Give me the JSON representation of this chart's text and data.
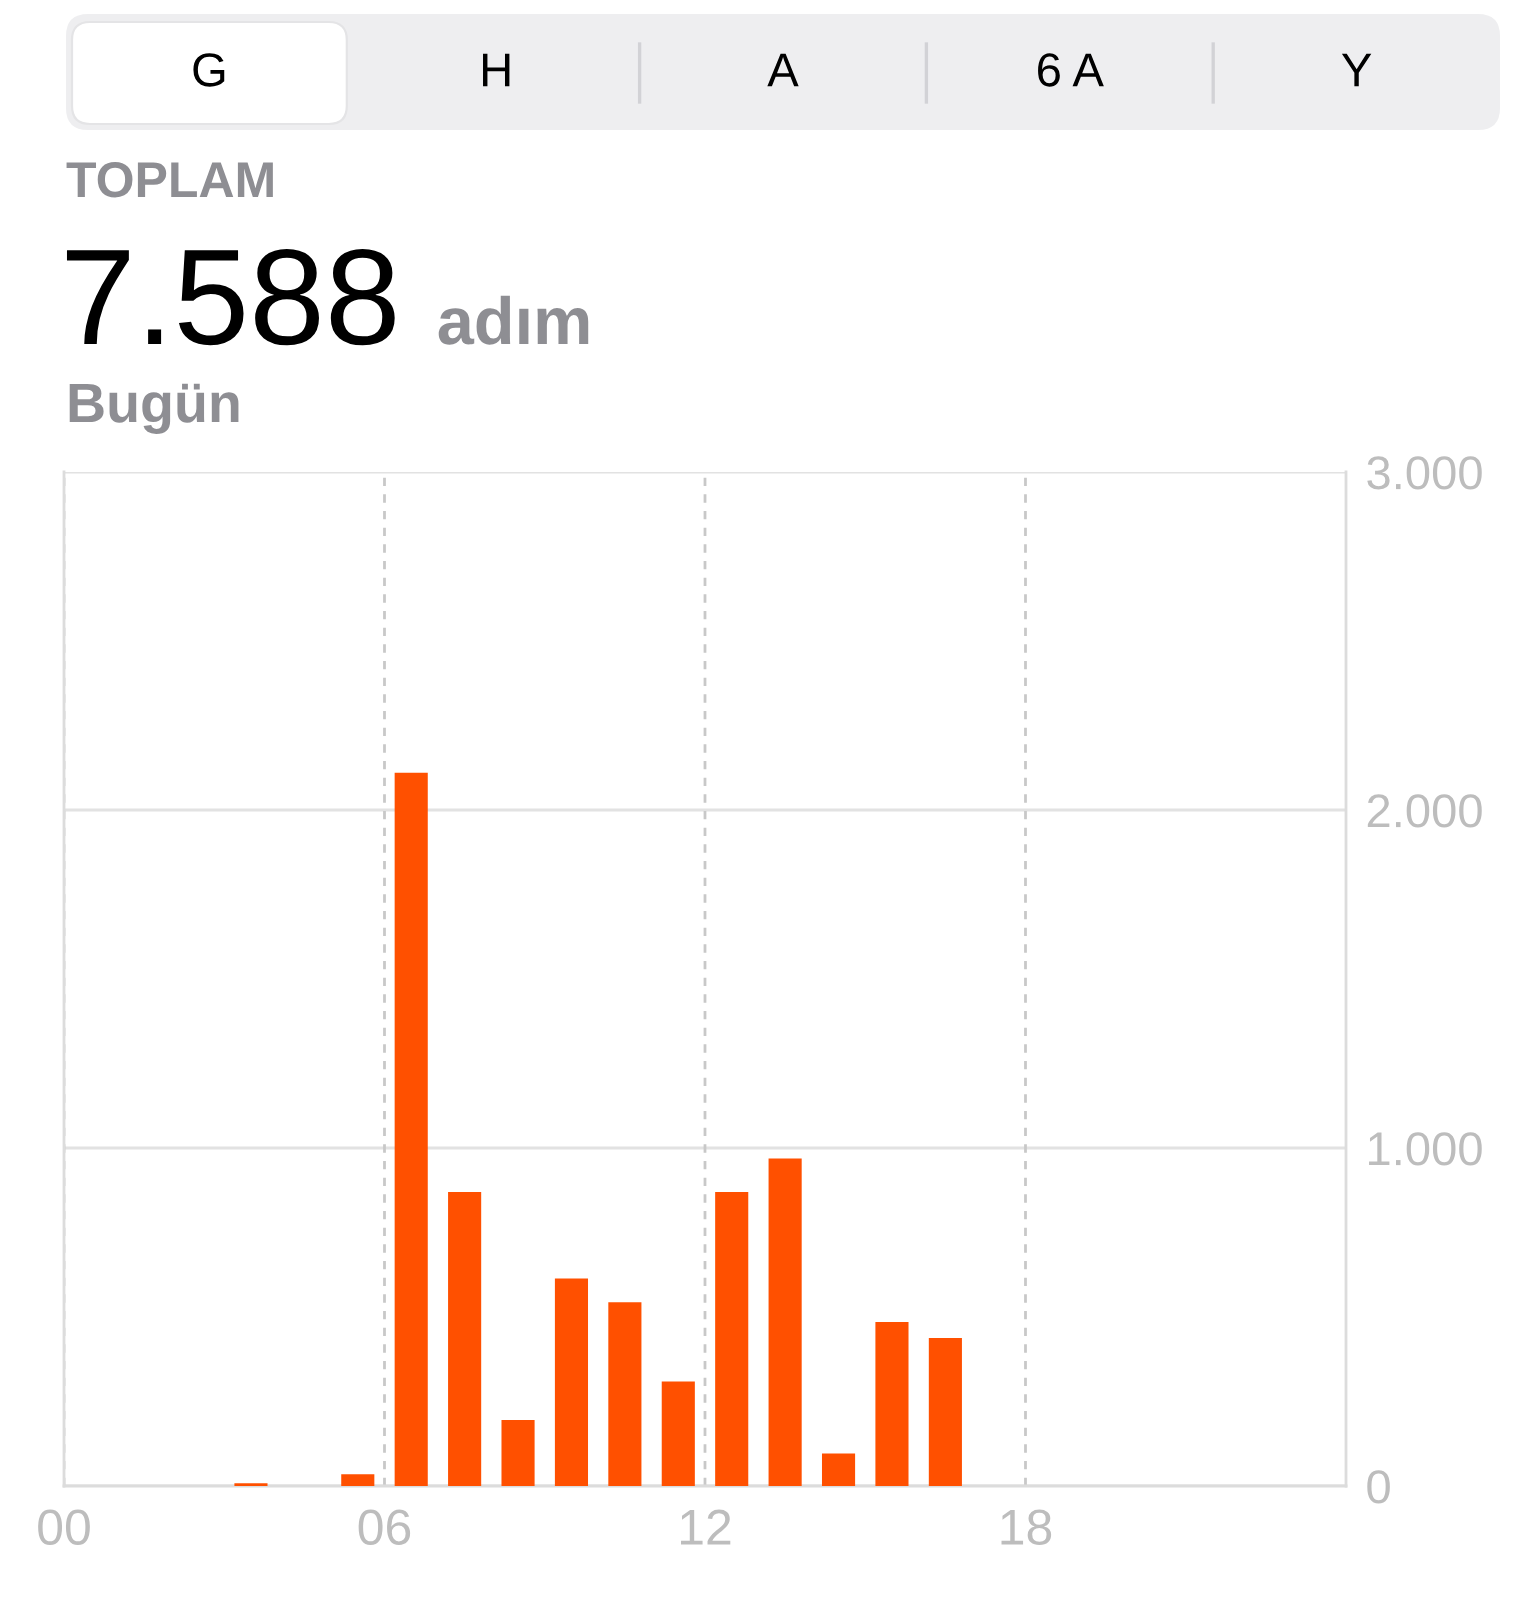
{
  "chart_data": {
    "type": "bar",
    "title": "7.588 adım",
    "subtitle": "Bugün",
    "annotations": [
      "G",
      "H",
      "A",
      "6 A",
      "Y",
      "TOPLAM"
    ],
    "x": [
      3.5,
      5.5,
      6.5,
      7.5,
      8.5,
      9.5,
      10.5,
      11.5,
      12.5,
      13.5,
      14.5,
      15.5,
      16.5
    ],
    "values": [
      8,
      35,
      2110,
      870,
      195,
      614,
      544,
      309,
      870,
      969,
      96,
      485,
      438
    ],
    "color": "#ff5000",
    "xlim": [
      0,
      24
    ],
    "xticks": [
      {
        "value": 0,
        "label": "00"
      },
      {
        "value": 6,
        "label": "06"
      },
      {
        "value": 12,
        "label": "12"
      },
      {
        "value": 18,
        "label": "18"
      }
    ],
    "ylim": [
      0,
      3000
    ],
    "yticks": [
      0,
      {
        "value": 1000,
        "label": "1.000"
      },
      {
        "value": 2000,
        "label": "2.000"
      },
      {
        "value": 3000,
        "label": "3.000"
      }
    ],
    "grid": true
  }
}
